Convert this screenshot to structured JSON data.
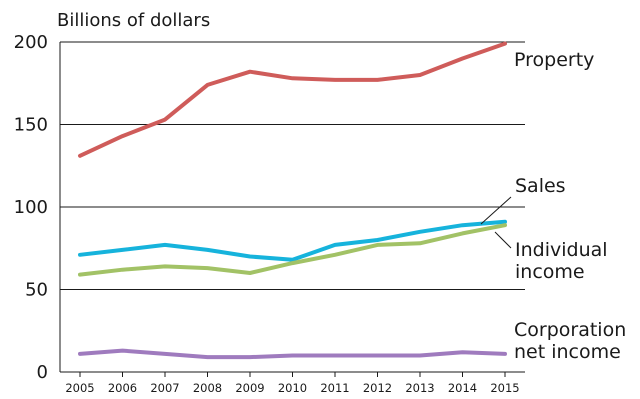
{
  "chart_data": {
    "type": "line",
    "title": "",
    "xlabel": "",
    "ylabel": "Billions of dollars",
    "x": [
      2005,
      2006,
      2007,
      2008,
      2009,
      2010,
      2011,
      2012,
      2013,
      2014,
      2015
    ],
    "ylim": [
      0,
      200
    ],
    "yticks": [
      0,
      50,
      100,
      150,
      200
    ],
    "grid": "horizontal",
    "legend": "direct labels at right",
    "series": [
      {
        "name": "Property",
        "label_lines": [
          "Property"
        ],
        "color": "#cf5c5a",
        "values": [
          131,
          143,
          153,
          174,
          182,
          178,
          177,
          177,
          180,
          190,
          199
        ]
      },
      {
        "name": "Sales",
        "label_lines": [
          "Sales"
        ],
        "color": "#16b3dc",
        "values": [
          71,
          74,
          77,
          74,
          70,
          68,
          77,
          80,
          85,
          89,
          91
        ]
      },
      {
        "name": "Individual income",
        "label_lines": [
          "Individual",
          "income"
        ],
        "color": "#a2c266",
        "values": [
          59,
          62,
          64,
          63,
          60,
          66,
          71,
          77,
          78,
          84,
          89
        ]
      },
      {
        "name": "Corporation net income",
        "label_lines": [
          "Corporation",
          "net income"
        ],
        "color": "#9f7bbe",
        "values": [
          11,
          13,
          11,
          9,
          9,
          10,
          10,
          10,
          10,
          12,
          11
        ]
      }
    ]
  }
}
